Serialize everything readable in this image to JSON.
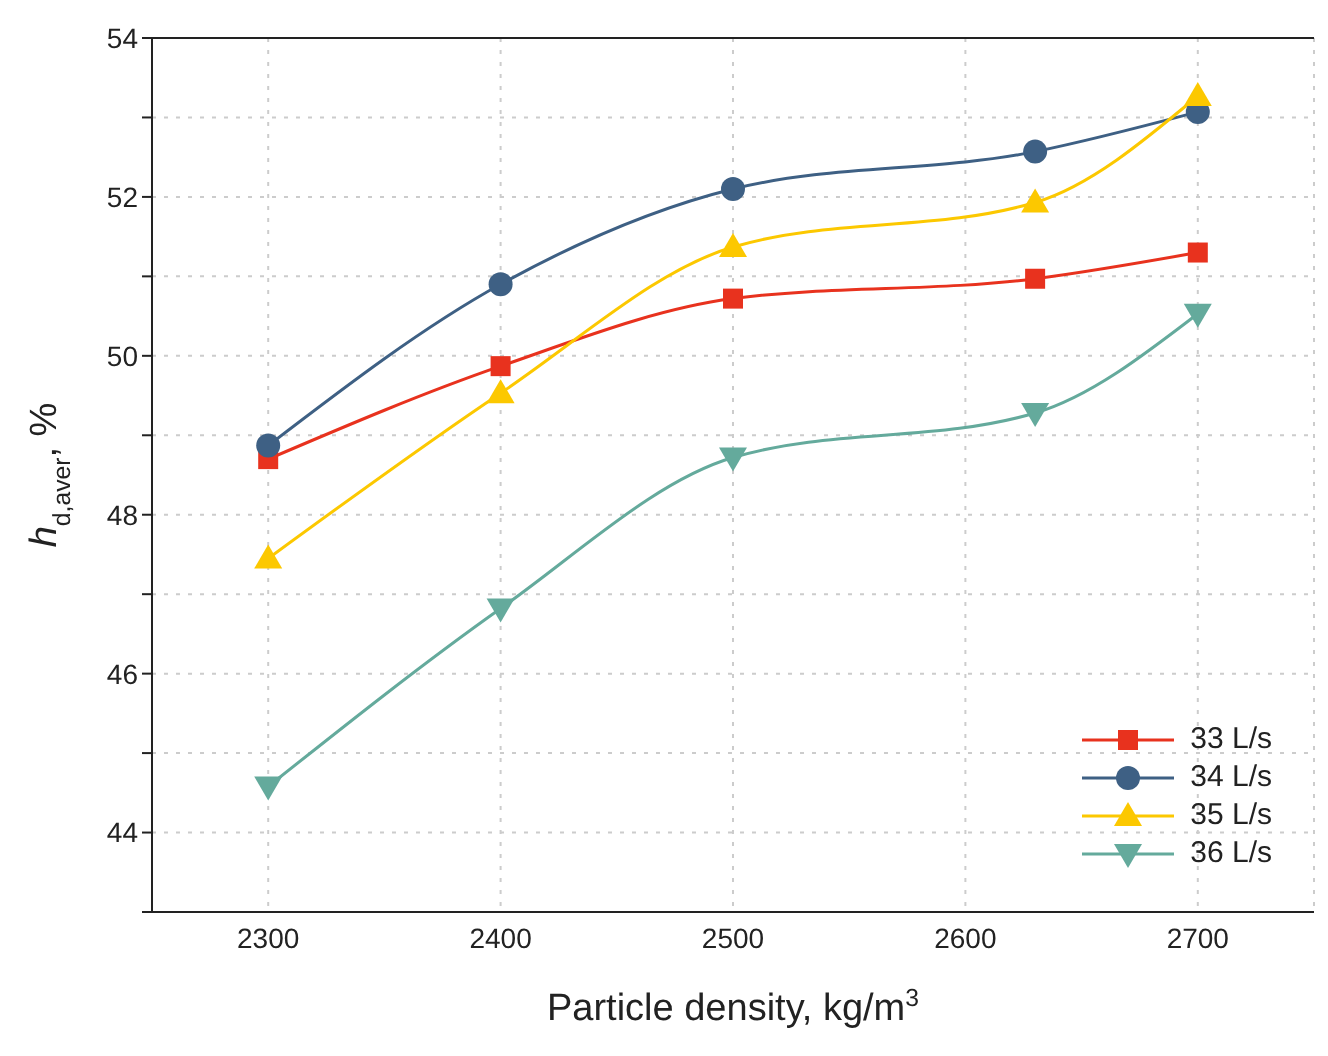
{
  "chart_data": {
    "type": "line",
    "xlabel": "Particle density, kg/m$^{3}$",
    "ylabel": "h$_{d,aver}$, %",
    "x": [
      2300,
      2400,
      2500,
      2630,
      2700
    ],
    "series": [
      {
        "name": "33 L/s",
        "color": "#e8321e",
        "marker": "square",
        "values": [
          48.7,
          49.87,
          50.72,
          50.97,
          51.3
        ]
      },
      {
        "name": "34 L/s",
        "color": "#3e6084",
        "marker": "circle",
        "values": [
          48.87,
          50.9,
          52.1,
          52.57,
          53.07
        ]
      },
      {
        "name": "35 L/s",
        "color": "#fcc800",
        "marker": "triangle",
        "values": [
          47.45,
          49.53,
          51.37,
          51.93,
          53.27
        ]
      },
      {
        "name": "36 L/s",
        "color": "#64aa9c",
        "marker": "triangle-down",
        "values": [
          44.58,
          46.82,
          48.72,
          49.28,
          50.53
        ]
      }
    ],
    "xlim": [
      2250,
      2750
    ],
    "xticks": [
      2300,
      2400,
      2500,
      2600,
      2700
    ],
    "ylim": [
      43,
      54
    ],
    "yticks": [
      {
        "value": 43,
        "label": null
      },
      44,
      {
        "value": 45,
        "label": null
      },
      46,
      {
        "value": 47,
        "label": null
      },
      48,
      {
        "value": 49,
        "label": null
      },
      50,
      {
        "value": 51,
        "label": null
      },
      52,
      {
        "value": 53,
        "label": null
      },
      54
    ],
    "grid": true,
    "legend": "bottom right",
    "line_style": "solid"
  }
}
